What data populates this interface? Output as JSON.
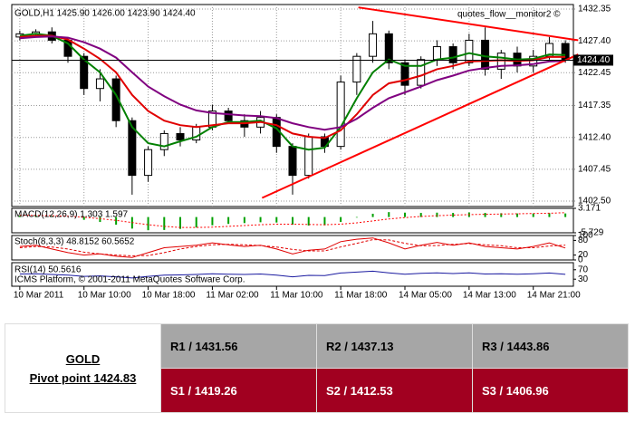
{
  "chart_data": {
    "type": "candlestick",
    "title": "GOLD,H1  1425.90 1426.00 1423.90 1424.40",
    "watermark": "quotes_flow__monitor2 ©",
    "copyright": "ICMS Platform, © 2001-2011 MetaQuotes Software Corp.",
    "categories": [
      "10 Mar 2011",
      null,
      null,
      null,
      "10 Mar 10:00",
      null,
      null,
      null,
      "10 Mar 18:00",
      null,
      null,
      null,
      "11 Mar 02:00",
      null,
      null,
      null,
      "11 Mar 10:00",
      null,
      null,
      null,
      "11 Mar 18:00",
      null,
      null,
      null,
      "14 Mar 05:00",
      null,
      null,
      null,
      "14 Mar 13:00",
      null,
      null,
      null,
      "14 Mar 21:00",
      null,
      null
    ],
    "open": [
      1428.0,
      1428.5,
      1428.8,
      1427.5,
      1425.0,
      1420.0,
      1421.5,
      1415.0,
      1406.5,
      1410.5,
      1413.0,
      1412.0,
      1414.0,
      1416.5,
      1415.0,
      1414.0,
      1415.5,
      1411.0,
      1406.5,
      1412.5,
      1411.0,
      1421.0,
      1425.0,
      1428.5,
      1424.0,
      1420.5,
      1424.5,
      1426.5,
      1424.0,
      1427.5,
      1423.0,
      1425.5,
      1423.5,
      1425.0,
      1427.0
    ],
    "high": [
      1429.0,
      1429.2,
      1429.5,
      1428.0,
      1425.5,
      1423.0,
      1422.0,
      1415.5,
      1411.0,
      1413.5,
      1414.0,
      1414.5,
      1417.5,
      1417.0,
      1416.0,
      1416.5,
      1416.0,
      1411.5,
      1413.0,
      1413.0,
      1422.0,
      1425.5,
      1430.5,
      1429.0,
      1424.5,
      1425.0,
      1427.5,
      1427.0,
      1428.5,
      1429.5,
      1426.0,
      1426.5,
      1426.0,
      1428.0,
      1427.5
    ],
    "low": [
      1427.5,
      1428.0,
      1427.0,
      1424.0,
      1419.0,
      1418.0,
      1414.0,
      1403.5,
      1405.5,
      1409.5,
      1411.0,
      1411.5,
      1413.5,
      1414.5,
      1412.5,
      1413.0,
      1410.0,
      1403.5,
      1406.0,
      1410.0,
      1410.5,
      1419.0,
      1424.0,
      1423.0,
      1419.0,
      1420.0,
      1423.5,
      1423.0,
      1423.5,
      1422.0,
      1421.5,
      1422.5,
      1422.5,
      1424.5,
      1424.0
    ],
    "close": [
      1428.5,
      1428.8,
      1427.5,
      1425.0,
      1420.0,
      1421.5,
      1415.0,
      1406.5,
      1410.5,
      1413.0,
      1412.0,
      1414.0,
      1416.5,
      1415.0,
      1414.0,
      1415.5,
      1411.0,
      1406.5,
      1412.5,
      1411.0,
      1421.0,
      1425.0,
      1428.5,
      1424.0,
      1420.5,
      1424.5,
      1426.5,
      1424.0,
      1427.5,
      1423.0,
      1425.5,
      1423.5,
      1425.0,
      1427.0,
      1424.4
    ],
    "series": [
      {
        "color": "#008000",
        "values": [
          1428.2,
          1428.5,
          1428.2,
          1427.0,
          1424.5,
          1422.5,
          1419.0,
          1414.0,
          1411.5,
          1411.0,
          1411.8,
          1412.5,
          1414.0,
          1414.8,
          1414.8,
          1415.0,
          1413.8,
          1411.0,
          1410.5,
          1410.8,
          1414.0,
          1418.5,
          1422.5,
          1424.5,
          1423.5,
          1423.5,
          1424.5,
          1424.8,
          1425.5,
          1425.0,
          1424.8,
          1424.5,
          1424.6,
          1425.3,
          1425.2
        ]
      },
      {
        "color": "#e00000",
        "values": [
          1428.0,
          1428.2,
          1428.2,
          1427.6,
          1426.2,
          1424.6,
          1422.5,
          1419.0,
          1416.5,
          1415.0,
          1414.3,
          1414.0,
          1414.3,
          1414.6,
          1414.6,
          1414.8,
          1414.3,
          1413.0,
          1412.5,
          1412.3,
          1413.5,
          1416.0,
          1419.0,
          1420.8,
          1421.3,
          1422.0,
          1423.0,
          1423.5,
          1424.2,
          1424.3,
          1424.4,
          1424.3,
          1424.4,
          1424.9,
          1424.9
        ]
      },
      {
        "color": "#800080",
        "values": [
          1427.8,
          1428.0,
          1428.1,
          1427.9,
          1427.2,
          1426.2,
          1424.8,
          1422.5,
          1420.3,
          1418.8,
          1417.5,
          1416.6,
          1416.2,
          1416.0,
          1415.8,
          1415.7,
          1415.4,
          1414.6,
          1414.0,
          1413.6,
          1414.0,
          1415.3,
          1417.0,
          1418.5,
          1419.4,
          1420.3,
          1421.3,
          1422.0,
          1422.8,
          1423.2,
          1423.5,
          1423.6,
          1423.8,
          1424.2,
          1424.3
        ]
      }
    ],
    "trendlines": [
      {
        "color": "#ff0000",
        "x": [
          21.1,
          34.8
        ],
        "y": [
          1432.6,
          1427.5
        ]
      },
      {
        "color": "#ff0000",
        "x": [
          15.1,
          34.8
        ],
        "y": [
          1403.0,
          1425.3
        ]
      }
    ],
    "current_price": {
      "value": 1424.4,
      "label": "1424.40"
    },
    "ylim": [
      1401.66,
      1433.05
    ],
    "yticks": [
      1432.35,
      {
        "value": 1427.4,
        "label": "1427.40"
      },
      1422.45,
      1417.35,
      {
        "value": 1412.4,
        "label": "1412.40"
      },
      1407.45,
      {
        "value": 1402.5,
        "label": "1402.50"
      }
    ],
    "grid": true,
    "macd": {
      "title": "MACD(12,26,9) 1.303 1.597",
      "color": "#00a000",
      "signal_color": "#ff0000",
      "ylim": [
        -5.729,
        3.171
      ],
      "yticks": [
        3.171,
        -5.729
      ],
      "values": [
        0.5,
        0.6,
        0.4,
        0,
        -1,
        -1.8,
        -2.8,
        -4.2,
        -4.8,
        -4.7,
        -4.3,
        -3.8,
        -3.0,
        -2.5,
        -2.2,
        -1.9,
        -2.0,
        -2.8,
        -3.1,
        -3.0,
        -1.8,
        -0.2,
        1.2,
        1.8,
        1.6,
        1.5,
        1.6,
        1.5,
        1.7,
        1.5,
        1.4,
        1.3,
        1.3,
        1.4,
        1.303
      ],
      "signal": [
        0.6,
        0.6,
        0.5,
        0.3,
        -0.1,
        -0.6,
        -1.2,
        -2.0,
        -2.8,
        -3.4,
        -3.8,
        -3.8,
        -3.7,
        -3.4,
        -3.1,
        -2.8,
        -2.6,
        -2.6,
        -2.7,
        -2.8,
        -2.6,
        -2.1,
        -1.4,
        -0.7,
        -0.2,
        0.2,
        0.5,
        0.7,
        0.9,
        1.0,
        1.1,
        1.2,
        1.3,
        1.4,
        1.597
      ]
    },
    "stoch": {
      "title": "Stoch(8,3,3) 48.8152 60.5652",
      "color": "#e00000",
      "ylim": [
        0,
        100
      ],
      "yticks": [
        0,
        20,
        80,
        100
      ],
      "main": [
        55,
        60,
        45,
        30,
        20,
        25,
        15,
        10,
        30,
        50,
        55,
        60,
        70,
        62,
        55,
        60,
        45,
        25,
        40,
        45,
        75,
        85,
        90,
        70,
        45,
        60,
        72,
        60,
        70,
        55,
        50,
        45,
        55,
        70,
        48.8152
      ],
      "signal": [
        50,
        55,
        53,
        45,
        32,
        25,
        20,
        17,
        18,
        30,
        45,
        55,
        62,
        64,
        62,
        59,
        53,
        43,
        37,
        37,
        53,
        68,
        83,
        82,
        68,
        58,
        59,
        64,
        67,
        62,
        58,
        50,
        50,
        57,
        60.5652
      ]
    },
    "rsi": {
      "title": "RSI(14) 50.5616",
      "color": "#1a1aa0",
      "ylim": [
        0,
        100
      ],
      "yticks": [
        30,
        70
      ],
      "values": [
        52,
        53,
        50,
        47,
        42,
        44,
        40,
        35,
        42,
        47,
        48,
        50,
        53,
        51,
        50,
        52,
        47,
        40,
        46,
        45,
        56,
        60,
        64,
        57,
        51,
        55,
        57,
        54,
        57,
        52,
        53,
        51,
        53,
        56,
        50.5616
      ]
    }
  },
  "table": {
    "symbol": "GOLD",
    "pivot": "Pivot point 1424.83",
    "resistance": [
      "R1 / 1431.56",
      "R2 / 1437.13",
      "R3 / 1443.86"
    ],
    "support": [
      "S1 / 1419.26",
      "S2 / 1412.53",
      "S3 / 1406.96"
    ]
  }
}
